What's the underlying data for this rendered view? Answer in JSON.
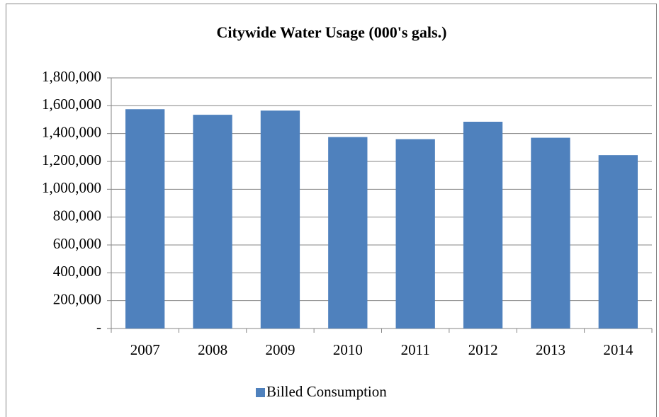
{
  "chart_data": {
    "type": "bar",
    "title": "Citywide Water Usage (000's gals.)",
    "categories": [
      "2007",
      "2008",
      "2009",
      "2010",
      "2011",
      "2012",
      "2013",
      "2014"
    ],
    "series": [
      {
        "name": "Billed Consumption",
        "color": "#4f81bd",
        "values": [
          1575000,
          1535000,
          1565000,
          1375000,
          1360000,
          1485000,
          1370000,
          1245000
        ]
      }
    ],
    "ylim": [
      0,
      1800000
    ],
    "yticks": [
      {
        "value": 0,
        "label": "-"
      },
      {
        "value": 200000,
        "label": "200,000"
      },
      {
        "value": 400000,
        "label": "400,000"
      },
      {
        "value": 600000,
        "label": "600,000"
      },
      {
        "value": 800000,
        "label": "800,000"
      },
      {
        "value": 1000000,
        "label": "1,000,000"
      },
      {
        "value": 1200000,
        "label": "1,200,000"
      },
      {
        "value": 1400000,
        "label": "1,400,000"
      },
      {
        "value": 1600000,
        "label": "1,600,000"
      },
      {
        "value": 1800000,
        "label": "1,800,000"
      }
    ],
    "grid": true,
    "legend": "bottom"
  }
}
